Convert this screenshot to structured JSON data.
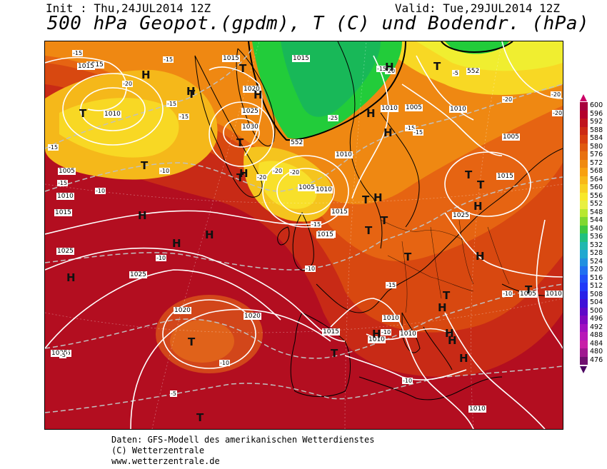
{
  "header": {
    "init": "Init : Thu,24JUL2014 12Z",
    "valid": "Valid: Tue,29JUL2014 12Z",
    "title": "500 hPa Geopot.(gpdm), T (C) und Bodendr. (hPa)"
  },
  "footer": {
    "line1": "Daten: GFS-Modell des amerikanischen Wetterdienstes",
    "line2": "(C) Wetterzentrale",
    "line3": "www.wetterzentrale.de"
  },
  "scale": {
    "labels": [
      "600",
      "596",
      "592",
      "588",
      "584",
      "580",
      "576",
      "572",
      "568",
      "564",
      "560",
      "556",
      "552",
      "548",
      "544",
      "540",
      "536",
      "532",
      "528",
      "524",
      "520",
      "516",
      "512",
      "508",
      "504",
      "500",
      "496",
      "492",
      "488",
      "484",
      "480",
      "476"
    ],
    "colors": [
      "#a8003c",
      "#b4002c",
      "#c0141e",
      "#cc2a14",
      "#d84010",
      "#e05a10",
      "#e87010",
      "#f08a10",
      "#f8a010",
      "#f8b818",
      "#f8d020",
      "#f8e828",
      "#e8f040",
      "#b8e830",
      "#80d830",
      "#40c840",
      "#20c080",
      "#20b8b0",
      "#20a8d0",
      "#2090e0",
      "#2070f0",
      "#2050f8",
      "#2038f8",
      "#2820e8",
      "#4010d8",
      "#6008c8",
      "#8008c0",
      "#a010c0",
      "#b818b8",
      "#c820a8",
      "#a01890",
      "#701070"
    ],
    "top_color": "#cc0066",
    "bottom_color": "#4a0060"
  },
  "map": {
    "pressure_labels": [
      {
        "text": "1015"
      },
      {
        "text": "1015"
      },
      {
        "text": "1015"
      },
      {
        "text": "1010"
      },
      {
        "text": "1020"
      },
      {
        "text": "1025"
      },
      {
        "text": "1030"
      },
      {
        "text": "1015"
      },
      {
        "text": "1010"
      },
      {
        "text": "1005"
      },
      {
        "text": "1010"
      },
      {
        "text": "1005"
      },
      {
        "text": "1015"
      },
      {
        "text": "1010"
      },
      {
        "text": "1015"
      },
      {
        "text": "1005"
      },
      {
        "text": "1015"
      },
      {
        "text": "1010"
      },
      {
        "text": "1015"
      },
      {
        "text": "1025"
      },
      {
        "text": "1025"
      },
      {
        "text": "1025"
      },
      {
        "text": "1020"
      },
      {
        "text": "1025"
      },
      {
        "text": "1020"
      },
      {
        "text": "1015"
      },
      {
        "text": "1010"
      },
      {
        "text": "1010"
      },
      {
        "text": "1010"
      },
      {
        "text": "1005"
      },
      {
        "text": "1025"
      },
      {
        "text": "1010"
      },
      {
        "text": "1010"
      },
      {
        "text": "1005"
      },
      {
        "text": "1010"
      },
      {
        "text": "1005"
      }
    ],
    "temp_labels": [
      {
        "text": "-15"
      },
      {
        "text": "-15"
      },
      {
        "text": "-20"
      },
      {
        "text": "-15"
      },
      {
        "text": "-15"
      },
      {
        "text": "-15"
      },
      {
        "text": "-10"
      },
      {
        "text": "-15"
      },
      {
        "text": "-10"
      },
      {
        "text": "-20"
      },
      {
        "text": "-20"
      },
      {
        "text": "-20"
      },
      {
        "text": "-25"
      },
      {
        "text": "-20"
      },
      {
        "text": "-20"
      },
      {
        "text": "-15"
      },
      {
        "text": "-15"
      },
      {
        "text": "-20"
      },
      {
        "text": "-20"
      },
      {
        "text": "-10"
      },
      {
        "text": "-15"
      },
      {
        "text": "-10"
      },
      {
        "text": "-15"
      },
      {
        "text": "-10"
      },
      {
        "text": "-10"
      },
      {
        "text": "-5"
      },
      {
        "text": "-10"
      },
      {
        "text": "-10"
      },
      {
        "text": "-5"
      },
      {
        "text": "-5"
      },
      {
        "text": "-15"
      }
    ],
    "geopot_labels": [
      {
        "text": "552"
      },
      {
        "text": "552"
      }
    ],
    "centers": [
      {
        "t": "H"
      },
      {
        "t": "T"
      },
      {
        "t": "H"
      },
      {
        "t": "T"
      },
      {
        "t": "H"
      },
      {
        "t": "T"
      },
      {
        "t": "H"
      },
      {
        "t": "T"
      },
      {
        "t": "H"
      },
      {
        "t": "H"
      },
      {
        "t": "T"
      },
      {
        "t": "H"
      },
      {
        "t": "T"
      },
      {
        "t": "T"
      },
      {
        "t": "H"
      },
      {
        "t": "T"
      },
      {
        "t": "H"
      },
      {
        "t": "T"
      },
      {
        "t": "H"
      },
      {
        "t": "T"
      },
      {
        "t": "H"
      },
      {
        "t": "T"
      },
      {
        "t": "T"
      },
      {
        "t": "H"
      },
      {
        "t": "T"
      },
      {
        "t": "H"
      },
      {
        "t": "T"
      },
      {
        "t": "H"
      },
      {
        "t": "H"
      },
      {
        "t": "T"
      },
      {
        "t": "H"
      },
      {
        "t": "H"
      },
      {
        "t": "T"
      },
      {
        "t": "T"
      },
      {
        "t": "H"
      },
      {
        "t": "H"
      },
      {
        "t": "T"
      }
    ]
  }
}
